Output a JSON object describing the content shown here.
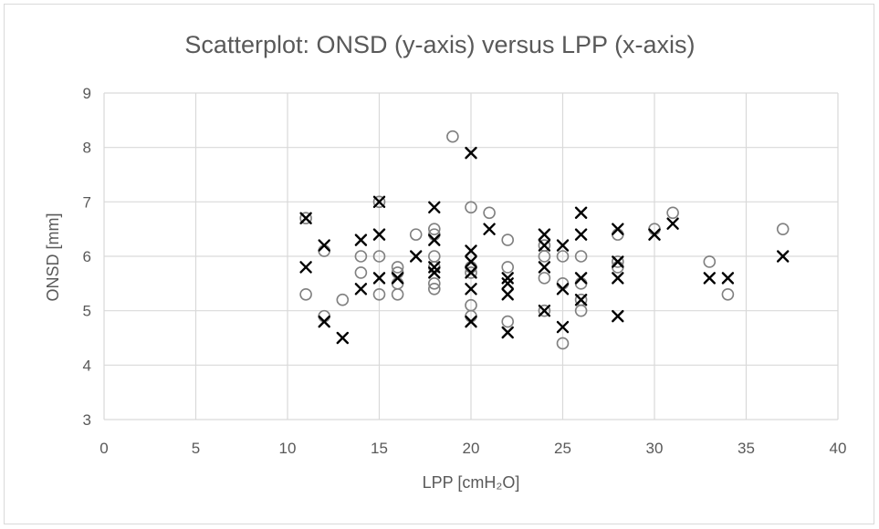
{
  "chart_data": {
    "type": "scatter",
    "title": "Scatterplot: ONSD (y-axis) versus LPP (x-axis)",
    "xlabel": "LPP [cmH₂O]",
    "ylabel": "ONSD [mm]",
    "xlim": [
      0,
      40
    ],
    "ylim": [
      3,
      9
    ],
    "x_ticks": [
      "0",
      "5",
      "10",
      "15",
      "20",
      "25",
      "30",
      "35",
      "40"
    ],
    "y_ticks": [
      "3",
      "4",
      "5",
      "6",
      "7",
      "8",
      "9"
    ],
    "grid": true,
    "legend": "none",
    "series": [
      {
        "marker": "circle",
        "color": "#808080",
        "points": [
          [
            11,
            6.7
          ],
          [
            11,
            5.3
          ],
          [
            12,
            4.9
          ],
          [
            12,
            6.1
          ],
          [
            13,
            5.2
          ],
          [
            14,
            5.7
          ],
          [
            14,
            6.0
          ],
          [
            15,
            7.0
          ],
          [
            15,
            6.0
          ],
          [
            15,
            5.3
          ],
          [
            16,
            5.3
          ],
          [
            16,
            5.5
          ],
          [
            16,
            5.7
          ],
          [
            16,
            5.8
          ],
          [
            17,
            6.4
          ],
          [
            18,
            6.5
          ],
          [
            18,
            6.4
          ],
          [
            18,
            6.0
          ],
          [
            18,
            5.8
          ],
          [
            18,
            5.5
          ],
          [
            18,
            5.4
          ],
          [
            19,
            8.2
          ],
          [
            20,
            6.9
          ],
          [
            20,
            5.8
          ],
          [
            20,
            5.7
          ],
          [
            20,
            5.1
          ],
          [
            20,
            4.9
          ],
          [
            21,
            6.8
          ],
          [
            22,
            6.3
          ],
          [
            22,
            5.8
          ],
          [
            22,
            4.8
          ],
          [
            24,
            6.2
          ],
          [
            24,
            6.0
          ],
          [
            24,
            5.6
          ],
          [
            24,
            5.0
          ],
          [
            25,
            6.0
          ],
          [
            25,
            5.5
          ],
          [
            25,
            4.4
          ],
          [
            26,
            6.0
          ],
          [
            26,
            5.5
          ],
          [
            26,
            5.2
          ],
          [
            26,
            5.0
          ],
          [
            28,
            6.4
          ],
          [
            28,
            5.9
          ],
          [
            28,
            5.8
          ],
          [
            30,
            6.5
          ],
          [
            31,
            6.8
          ],
          [
            33,
            5.9
          ],
          [
            34,
            5.3
          ],
          [
            37,
            6.5
          ]
        ]
      },
      {
        "marker": "x",
        "color": "#000000",
        "points": [
          [
            11,
            6.7
          ],
          [
            11,
            5.8
          ],
          [
            12,
            6.2
          ],
          [
            12,
            4.8
          ],
          [
            13,
            4.5
          ],
          [
            14,
            6.3
          ],
          [
            14,
            5.4
          ],
          [
            15,
            7.0
          ],
          [
            15,
            6.4
          ],
          [
            15,
            5.6
          ],
          [
            16,
            5.6
          ],
          [
            17,
            6.0
          ],
          [
            18,
            6.9
          ],
          [
            18,
            6.3
          ],
          [
            18,
            5.8
          ],
          [
            18,
            5.7
          ],
          [
            20,
            7.9
          ],
          [
            20,
            6.1
          ],
          [
            20,
            5.9
          ],
          [
            20,
            5.7
          ],
          [
            20,
            5.4
          ],
          [
            20,
            4.8
          ],
          [
            21,
            6.5
          ],
          [
            22,
            5.6
          ],
          [
            22,
            5.5
          ],
          [
            22,
            5.3
          ],
          [
            22,
            4.6
          ],
          [
            24,
            6.4
          ],
          [
            24,
            6.2
          ],
          [
            24,
            5.8
          ],
          [
            24,
            5.0
          ],
          [
            25,
            6.2
          ],
          [
            25,
            5.4
          ],
          [
            25,
            4.7
          ],
          [
            26,
            6.8
          ],
          [
            26,
            6.4
          ],
          [
            26,
            5.6
          ],
          [
            26,
            5.2
          ],
          [
            28,
            6.5
          ],
          [
            28,
            5.9
          ],
          [
            28,
            5.6
          ],
          [
            28,
            4.9
          ],
          [
            30,
            6.4
          ],
          [
            31,
            6.6
          ],
          [
            33,
            5.6
          ],
          [
            34,
            5.6
          ],
          [
            37,
            6.0
          ]
        ]
      }
    ]
  }
}
